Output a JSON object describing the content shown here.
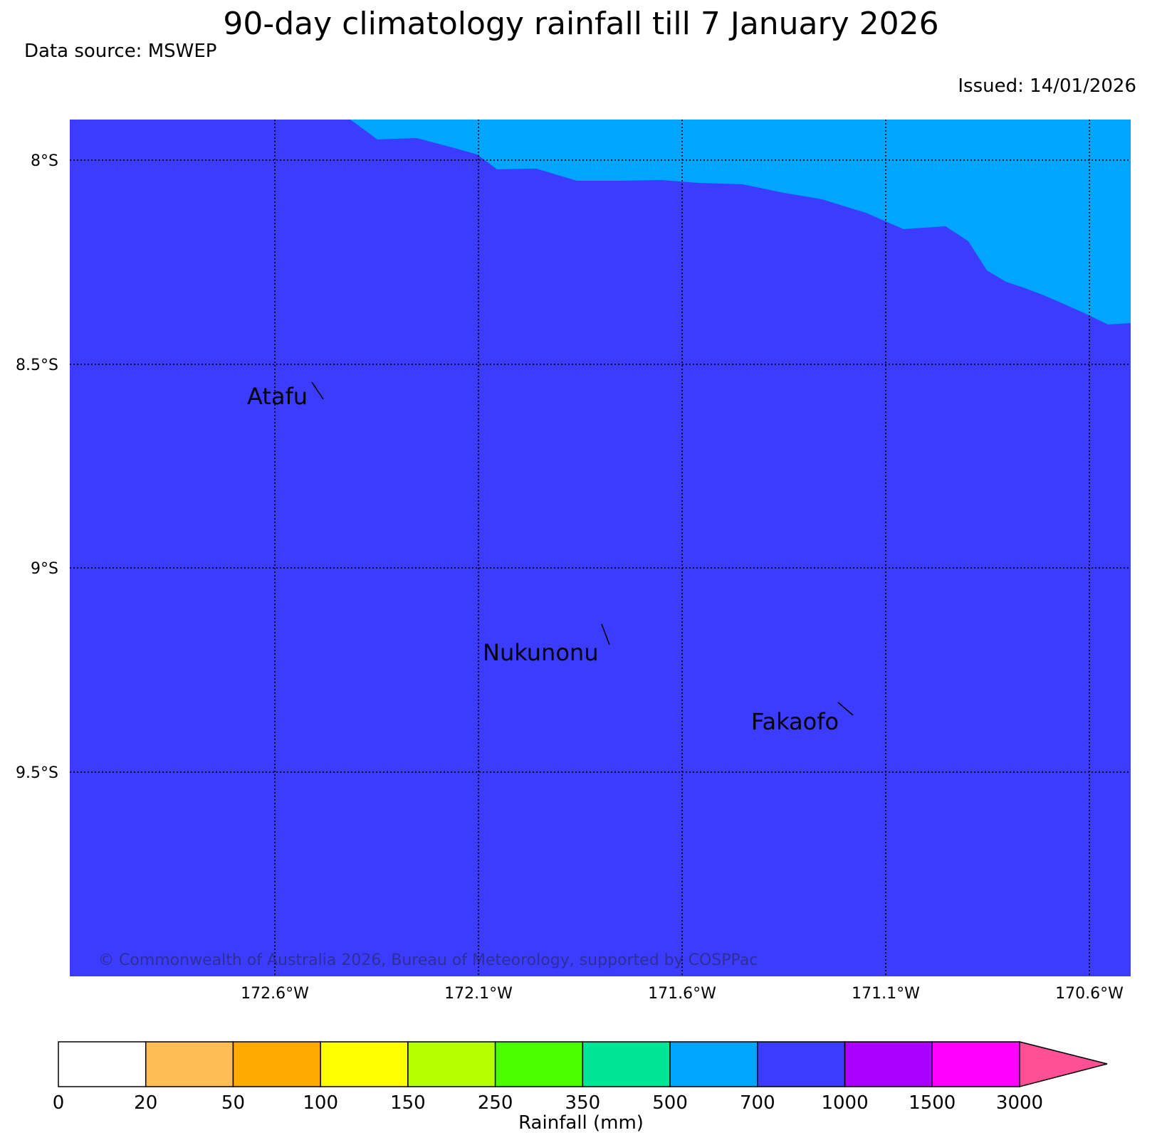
{
  "title": "90-day climatology rainfall till 7 January 2026",
  "data_source": "Data source: MSWEP",
  "issued": "Issued: 14/01/2026",
  "copyright": "© Commonwealth of Australia 2026, Bureau of Meteorology, supported by COSPPac",
  "lat_labels": [
    "8°S",
    "8.5°S",
    "9°S",
    "9.5°S"
  ],
  "lon_labels": [
    "172.6°W",
    "172.1°W",
    "171.6°W",
    "171.1°W",
    "170.6°W"
  ],
  "places": [
    {
      "name": "Atafu"
    },
    {
      "name": "Nukunonu"
    },
    {
      "name": "Fakaofo"
    }
  ],
  "map_fill": {
    "region_700_1000": "#3c3cff",
    "region_500_700": "#00a5ff"
  },
  "colorbar": {
    "label": "Rainfall (mm)",
    "ticks": [
      "0",
      "20",
      "50",
      "100",
      "150",
      "250",
      "350",
      "500",
      "700",
      "1000",
      "1500",
      "3000"
    ],
    "colors": [
      "#ffffff",
      "#ffbe55",
      "#ffaa00",
      "#ffff00",
      "#b4ff00",
      "#4bff00",
      "#00e696",
      "#00a5ff",
      "#3c3cff",
      "#aa00ff",
      "#ff00ff",
      "#ff5096"
    ]
  }
}
